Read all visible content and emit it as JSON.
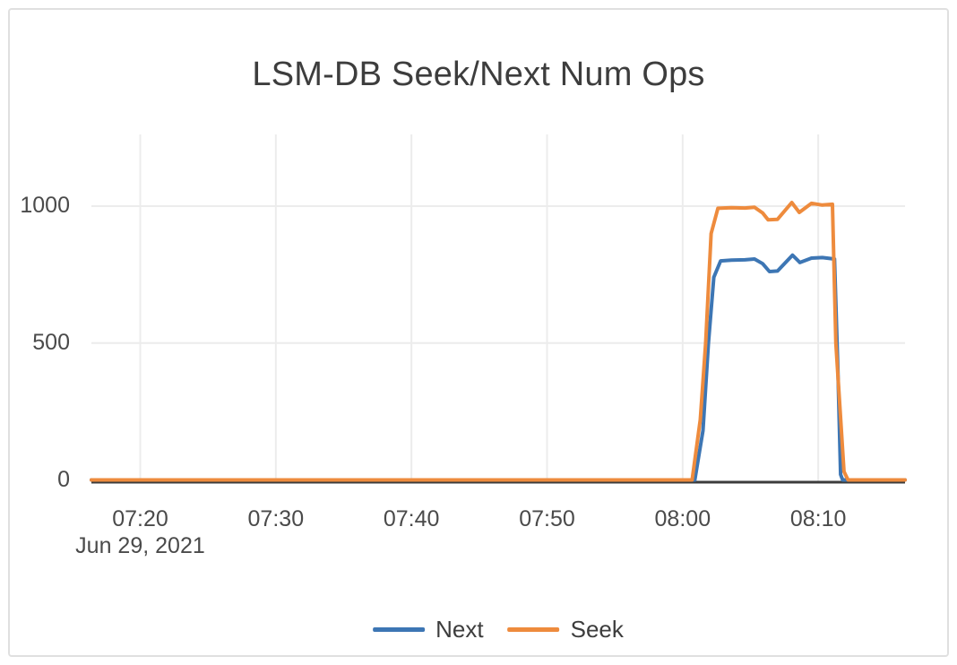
{
  "chart_data": {
    "type": "line",
    "title": "LSM-DB Seek/Next Num Ops",
    "x_axis": {
      "date_label": "Jun 29, 2021",
      "tick_labels": [
        "07:20",
        "07:30",
        "07:40",
        "07:50",
        "08:00",
        "08:10"
      ],
      "tick_minutes": [
        20,
        30,
        40,
        50,
        60,
        70
      ],
      "domain_minutes": [
        16.4,
        76.4
      ],
      "unit": "time of day"
    },
    "y_axis": {
      "tick_values": [
        0,
        500,
        1000
      ],
      "tick_labels": [
        "0",
        "500",
        "1000"
      ],
      "range": [
        0,
        1260
      ],
      "grid": true
    },
    "legend": {
      "position": "bottom-center",
      "items": [
        "Next",
        "Seek"
      ]
    },
    "series": [
      {
        "name": "Next",
        "color": "#3d76b4",
        "points": [
          [
            16.4,
            0
          ],
          [
            20,
            0
          ],
          [
            25,
            0
          ],
          [
            30,
            0
          ],
          [
            35,
            0
          ],
          [
            40,
            0
          ],
          [
            45,
            0
          ],
          [
            50,
            0
          ],
          [
            55,
            0
          ],
          [
            60,
            0
          ],
          [
            60.9,
            0
          ],
          [
            61.5,
            180
          ],
          [
            61.9,
            500
          ],
          [
            62.3,
            740
          ],
          [
            62.8,
            800
          ],
          [
            63.6,
            803
          ],
          [
            64.6,
            804
          ],
          [
            65.3,
            807
          ],
          [
            65.9,
            790
          ],
          [
            66.4,
            761
          ],
          [
            67.0,
            763
          ],
          [
            68.1,
            821
          ],
          [
            68.65,
            794
          ],
          [
            69.5,
            810
          ],
          [
            70.3,
            812
          ],
          [
            71.2,
            807
          ],
          [
            71.45,
            400
          ],
          [
            71.65,
            20
          ],
          [
            71.8,
            0
          ],
          [
            73,
            0
          ],
          [
            75,
            0
          ],
          [
            76.4,
            0
          ]
        ]
      },
      {
        "name": "Seek",
        "color": "#ee8b3d",
        "points": [
          [
            16.4,
            0
          ],
          [
            20,
            0
          ],
          [
            25,
            0
          ],
          [
            30,
            0
          ],
          [
            35,
            0
          ],
          [
            40,
            0
          ],
          [
            45,
            0
          ],
          [
            50,
            0
          ],
          [
            55,
            0
          ],
          [
            60,
            0
          ],
          [
            60.7,
            0
          ],
          [
            61.3,
            220
          ],
          [
            61.7,
            500
          ],
          [
            62.1,
            900
          ],
          [
            62.6,
            992
          ],
          [
            63.6,
            994
          ],
          [
            64.6,
            993
          ],
          [
            65.3,
            996
          ],
          [
            65.9,
            975
          ],
          [
            66.3,
            950
          ],
          [
            67.0,
            952
          ],
          [
            68.05,
            1013
          ],
          [
            68.6,
            977
          ],
          [
            69.5,
            1010
          ],
          [
            70.3,
            1004
          ],
          [
            71.05,
            1007
          ],
          [
            71.3,
            500
          ],
          [
            71.9,
            30
          ],
          [
            72.2,
            0
          ],
          [
            73,
            0
          ],
          [
            75,
            0
          ],
          [
            76.4,
            0
          ]
        ]
      }
    ],
    "colors": {
      "grid": "#ececec",
      "axis_line": "#3c3c3c",
      "tick_text": "#4a4a4a",
      "title_text": "#3d3d3d",
      "card_border": "#e0e0e0"
    }
  }
}
